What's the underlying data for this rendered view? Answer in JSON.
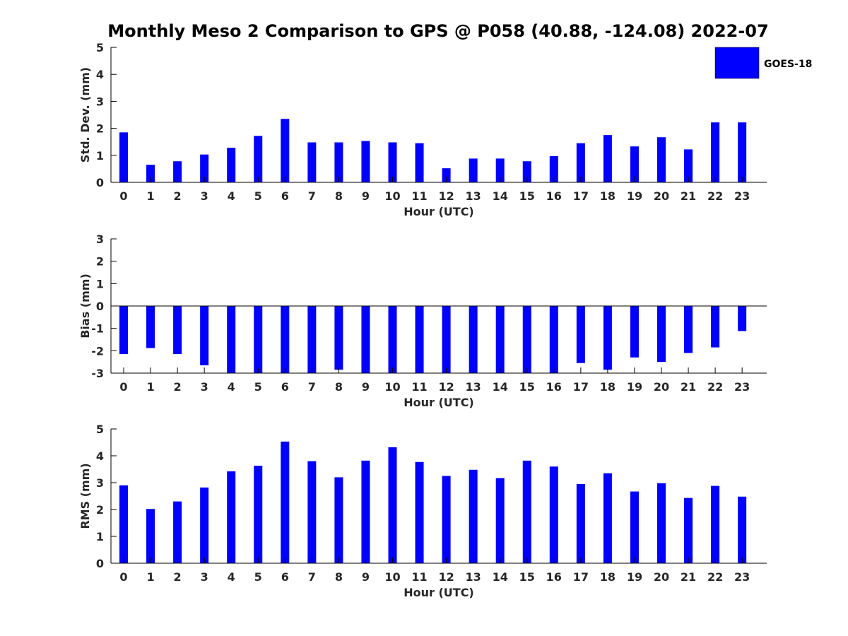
{
  "title": "Monthly Meso 2 Comparison to GPS @ P058 (40.88, -124.08) 2022-07",
  "legend": {
    "label": "GOES-18",
    "color": "#0000ff",
    "placement": "top-right"
  },
  "colors": {
    "bar": "#0000ff",
    "axis": "#000000",
    "tick_label": "#262626"
  },
  "chart_data": [
    {
      "type": "bar",
      "xlabel": "Hour (UTC)",
      "ylabel": "Std. Dev. (mm)",
      "ylim": [
        0,
        5
      ],
      "yticks": [
        0,
        1,
        2,
        3,
        4,
        5
      ],
      "categories": [
        "0",
        "1",
        "2",
        "3",
        "4",
        "5",
        "6",
        "7",
        "8",
        "9",
        "10",
        "11",
        "12",
        "13",
        "14",
        "15",
        "16",
        "17",
        "18",
        "19",
        "20",
        "21",
        "22",
        "23"
      ],
      "series": [
        {
          "name": "GOES-18",
          "values": [
            1.85,
            0.65,
            0.78,
            1.03,
            1.28,
            1.72,
            2.35,
            1.48,
            1.48,
            1.53,
            1.48,
            1.45,
            0.52,
            0.88,
            0.88,
            0.78,
            0.97,
            1.45,
            1.75,
            1.33,
            1.67,
            1.22,
            2.22,
            2.22
          ]
        }
      ],
      "grid": false
    },
    {
      "type": "bar",
      "xlabel": "Hour (UTC)",
      "ylabel": "Bias (mm)",
      "ylim": [
        -3,
        3
      ],
      "yticks": [
        -3,
        -2,
        -1,
        0,
        1,
        2,
        3
      ],
      "categories": [
        "0",
        "1",
        "2",
        "3",
        "4",
        "5",
        "6",
        "7",
        "8",
        "9",
        "10",
        "11",
        "12",
        "13",
        "14",
        "15",
        "16",
        "17",
        "18",
        "19",
        "20",
        "21",
        "22",
        "23"
      ],
      "series": [
        {
          "name": "GOES-18",
          "values": [
            -2.15,
            -1.88,
            -2.15,
            -2.65,
            -3.0,
            -3.0,
            -3.0,
            -3.0,
            -2.85,
            -3.0,
            -3.0,
            -3.0,
            -3.0,
            -3.0,
            -3.0,
            -3.0,
            -3.0,
            -2.55,
            -2.85,
            -2.3,
            -2.5,
            -2.1,
            -1.85,
            -1.12
          ]
        }
      ],
      "grid": false
    },
    {
      "type": "bar",
      "xlabel": "Hour (UTC)",
      "ylabel": "RMS (mm)",
      "ylim": [
        0,
        5
      ],
      "yticks": [
        0,
        1,
        2,
        3,
        4,
        5
      ],
      "categories": [
        "0",
        "1",
        "2",
        "3",
        "4",
        "5",
        "6",
        "7",
        "8",
        "9",
        "10",
        "11",
        "12",
        "13",
        "14",
        "15",
        "16",
        "17",
        "18",
        "19",
        "20",
        "21",
        "22",
        "23"
      ],
      "series": [
        {
          "name": "GOES-18",
          "values": [
            2.9,
            2.02,
            2.3,
            2.82,
            3.42,
            3.63,
            4.53,
            3.8,
            3.2,
            3.82,
            4.32,
            3.77,
            3.25,
            3.48,
            3.17,
            3.82,
            3.6,
            2.95,
            3.35,
            2.67,
            2.98,
            2.43,
            2.88,
            2.48
          ]
        }
      ],
      "grid": false
    }
  ]
}
